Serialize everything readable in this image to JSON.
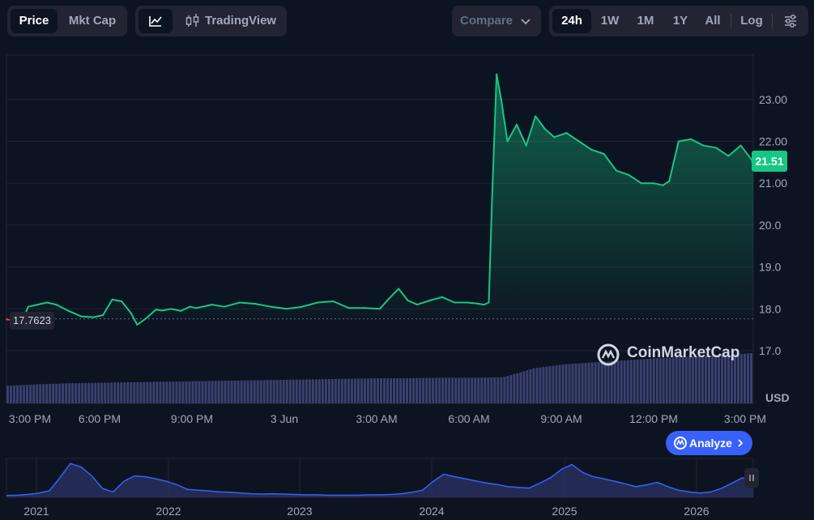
{
  "toolbar": {
    "price_tab": "Price",
    "mktcap_tab": "Mkt Cap",
    "tradingview_label": "TradingView",
    "compare_label": "Compare",
    "ranges": [
      "24h",
      "1W",
      "1M",
      "1Y",
      "All"
    ],
    "log_label": "Log",
    "active_range": "24h"
  },
  "icons": {
    "line_chart": "line-chart-icon",
    "candles": "candlestick-icon",
    "compare_chevron": "chevron-down-icon",
    "settings": "settings-sliders-icon",
    "analyze_logo": "coinmarketcap-logo-icon",
    "analyze_chevron": "chevron-right-icon",
    "pause": "pause-icon"
  },
  "chart": {
    "open_price_label": "17.7623",
    "current_price_label": "21.51",
    "currency": "USD",
    "watermark": "CoinMarketCap",
    "analyze_label": "Analyze",
    "colors": {
      "up": "#16c784",
      "down": "#ea3943",
      "volume": "#3a4170",
      "nav": "#3861fb"
    }
  },
  "chart_data": {
    "type": "line",
    "ytick_labels": [
      "23.00",
      "22.00",
      "21.00",
      "20.0",
      "19.0",
      "18.0",
      "17.0"
    ],
    "ylim": [
      16.6,
      24.0
    ],
    "xtick_labels": [
      "3:00 PM",
      "6:00 PM",
      "9:00 PM",
      "3 Jun",
      "3:00 AM",
      "6:00 AM",
      "9:00 AM",
      "12:00 PM",
      "3:00 PM"
    ],
    "open_price": 17.7623,
    "current_price": 21.51,
    "x_hours": [
      0,
      0.3,
      0.5,
      0.7,
      1.0,
      1.3,
      1.6,
      2.0,
      2.4,
      2.8,
      3.1,
      3.4,
      3.7,
      4.0,
      4.2,
      4.5,
      4.8,
      5.0,
      5.3,
      5.6,
      5.9,
      6.1,
      6.3,
      6.6,
      7.0,
      7.5,
      8.0,
      8.5,
      9.0,
      9.5,
      10.0,
      10.5,
      11.0,
      11.5,
      12.0,
      12.3,
      12.6,
      12.9,
      13.2,
      13.6,
      14.0,
      14.4,
      14.8,
      15.1,
      15.35,
      15.5,
      15.6,
      15.75,
      15.9,
      16.1,
      16.4,
      16.7,
      17.0,
      17.3,
      17.6,
      18.0,
      18.4,
      18.8,
      19.2,
      19.6,
      20.0,
      20.4,
      20.8,
      21.1,
      21.3,
      21.6,
      22.0,
      22.4,
      22.8,
      23.2,
      23.6,
      24.0
    ],
    "y_prices": [
      17.75,
      17.7,
      17.72,
      18.05,
      18.1,
      18.15,
      18.1,
      17.95,
      17.82,
      17.8,
      17.85,
      18.22,
      18.18,
      17.9,
      17.62,
      17.78,
      17.98,
      17.96,
      18.0,
      17.95,
      18.05,
      18.02,
      18.05,
      18.1,
      18.05,
      18.15,
      18.12,
      18.05,
      18.0,
      18.05,
      18.15,
      18.18,
      18.02,
      18.02,
      18.0,
      18.25,
      18.48,
      18.2,
      18.1,
      18.2,
      18.28,
      18.15,
      18.15,
      18.13,
      18.1,
      18.15,
      20.5,
      23.6,
      23.0,
      22.0,
      22.4,
      21.9,
      22.6,
      22.3,
      22.1,
      22.2,
      22.0,
      21.8,
      21.7,
      21.3,
      21.2,
      21.0,
      21.0,
      20.95,
      21.05,
      22.0,
      22.05,
      21.9,
      21.85,
      21.65,
      21.9,
      21.51
    ],
    "volume_relative": [
      0.35,
      0.38,
      0.4,
      0.41,
      0.42,
      0.43,
      0.44,
      0.45,
      0.46,
      0.47,
      0.48,
      0.49,
      0.5,
      0.5,
      0.51,
      0.51,
      0.52,
      0.7,
      0.78,
      0.82,
      0.86,
      0.9,
      0.93,
      0.96,
      1.0
    ],
    "navigator": {
      "type": "area",
      "xtick_labels": [
        "2021",
        "2022",
        "2023",
        "2024",
        "2025",
        "2026"
      ],
      "values": [
        0.05,
        0.06,
        0.08,
        0.12,
        0.18,
        0.55,
        0.95,
        0.85,
        0.6,
        0.25,
        0.15,
        0.45,
        0.6,
        0.58,
        0.52,
        0.45,
        0.35,
        0.22,
        0.2,
        0.18,
        0.15,
        0.14,
        0.12,
        0.1,
        0.09,
        0.1,
        0.09,
        0.08,
        0.07,
        0.07,
        0.06,
        0.06,
        0.06,
        0.06,
        0.07,
        0.07,
        0.08,
        0.1,
        0.14,
        0.2,
        0.45,
        0.65,
        0.58,
        0.52,
        0.46,
        0.4,
        0.36,
        0.3,
        0.28,
        0.26,
        0.4,
        0.55,
        0.78,
        0.92,
        0.7,
        0.58,
        0.52,
        0.45,
        0.38,
        0.3,
        0.35,
        0.42,
        0.3,
        0.2,
        0.15,
        0.12,
        0.15,
        0.25,
        0.4,
        0.55,
        0.45
      ]
    }
  }
}
